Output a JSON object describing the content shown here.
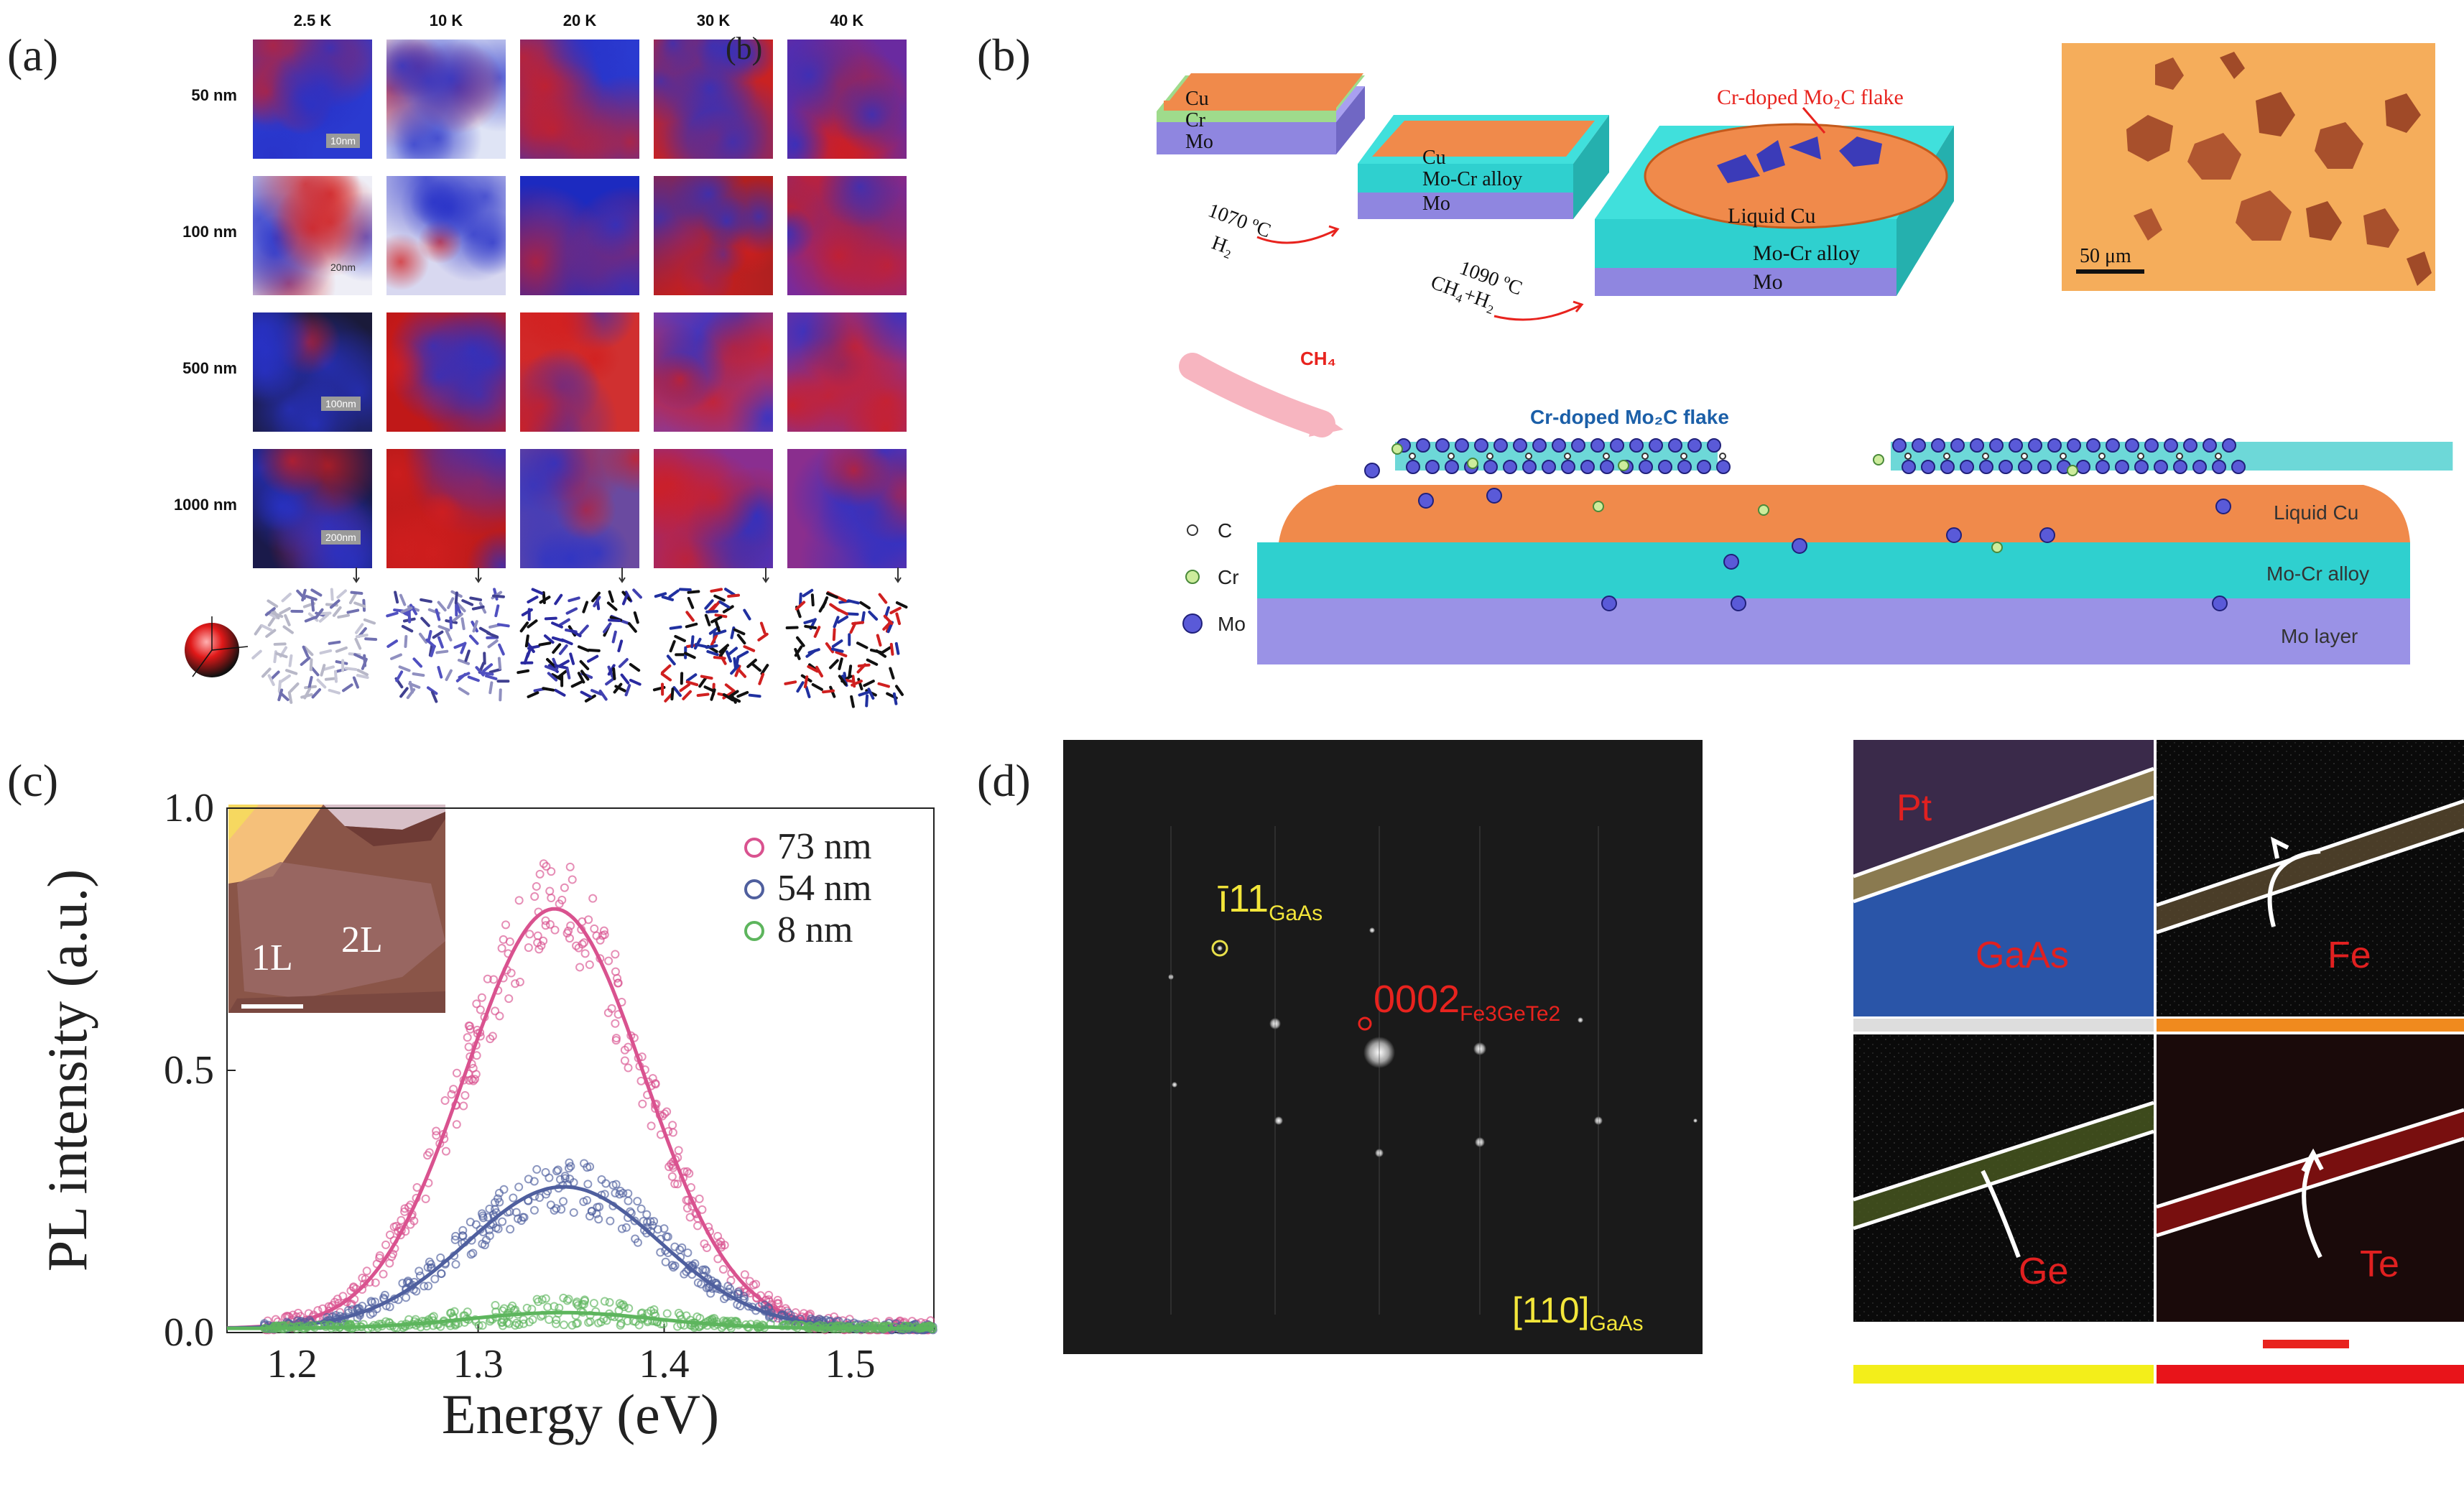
{
  "panel_labels": {
    "a": "(a)",
    "b": "(b)",
    "c": "(c)",
    "d": "(d)"
  },
  "panel_a": {
    "temperatures": [
      "2.5 K",
      "10 K",
      "20 K",
      "30 K",
      "40 K"
    ],
    "thicknesses": [
      "50 nm",
      "100 nm",
      "500 nm",
      "1000 nm"
    ],
    "scale_bars": [
      "10nm",
      "20nm",
      "100nm",
      "200nm"
    ],
    "overlay_letter": "(b)"
  },
  "panel_b": {
    "stack1": [
      "Cu",
      "Cr",
      "Mo"
    ],
    "stack2": [
      "Cu",
      "Mo-Cr alloy",
      "Mo"
    ],
    "stack3": [
      "Liquid Cu",
      "Mo-Cr alloy",
      "Mo"
    ],
    "flake_label": "Cr-doped Mo₂C flake",
    "step1": {
      "temp": "1070 ºC",
      "gas": "H₂"
    },
    "step2": {
      "temp": "1090 ºC",
      "gas": "CH₄+H₂"
    },
    "micro_scale": "50 μm",
    "schematic": {
      "gas": "CH₄",
      "flake_label": "Cr-doped Mo₂C flake",
      "layers": [
        "Liquid Cu",
        "Mo-Cr alloy",
        "Mo layer"
      ],
      "legend": [
        "C",
        "Cr",
        "Mo"
      ]
    },
    "colors": {
      "cu": "#f08a4b",
      "alloy": "#2fd0cf",
      "mo": "#8f86e0",
      "flake": "#3b3bb8"
    }
  },
  "panel_c": {
    "inset_labels": [
      "1L",
      "2L"
    ],
    "chart_data": {
      "type": "scatter",
      "title": "",
      "xlabel": "Energy (eV)",
      "ylabel": "PL intensity (a.u.)",
      "xlim": [
        1.165,
        1.545
      ],
      "ylim": [
        0.0,
        1.0
      ],
      "xticks": [
        "1.2",
        "1.3",
        "1.4",
        "1.5"
      ],
      "yticks": [
        "0.0",
        "0.5",
        "1.0"
      ],
      "legend_position": "top-right",
      "series": [
        {
          "name": "73 nm",
          "color": "#d9528f",
          "peak_x": 1.341,
          "peak_y": 0.8,
          "sigma": 0.048
        },
        {
          "name": "54 nm",
          "color": "#4f5f9e",
          "peak_x": 1.346,
          "peak_y": 0.27,
          "sigma": 0.052
        },
        {
          "name": "8 nm",
          "color": "#5db55d",
          "peak_x": 1.345,
          "peak_y": 0.03,
          "sigma": 0.05
        }
      ]
    }
  },
  "panel_d": {
    "diffraction": {
      "spot1": "ī11",
      "spot1_sub": "GaAs",
      "spot2": "0002",
      "spot2_sub": "Fe3GeTe2",
      "zone": "[110]",
      "zone_sub": "GaAs"
    },
    "eds_maps": [
      "Pt",
      "GaAs",
      "Fe",
      "Ge",
      "Te"
    ]
  }
}
